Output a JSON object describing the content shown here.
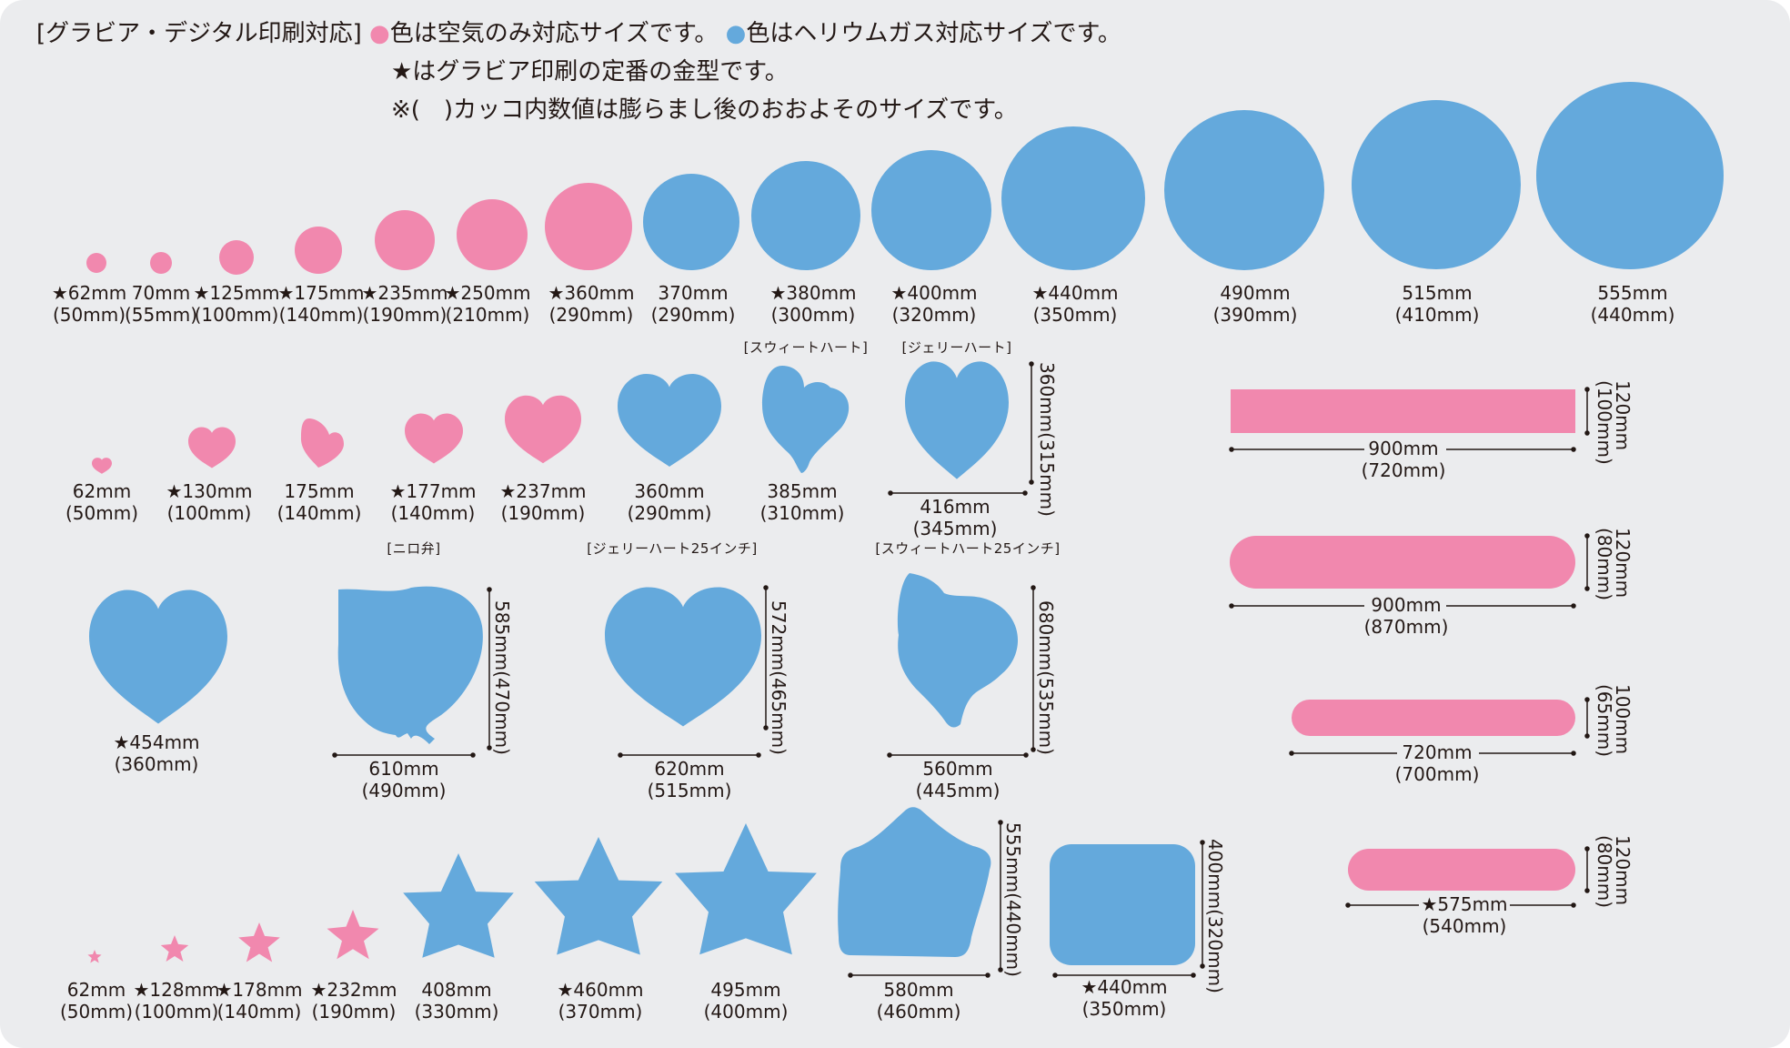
{
  "colors": {
    "pink": "#f188ae",
    "blue": "#64a9dc",
    "background": "#ebecee",
    "text": "#231815"
  },
  "legend": {
    "line1_prefix": "[グラビア・デジタル印刷対応]",
    "pink_dot": "●",
    "pink_text": "色は空気のみ対応サイズです。",
    "blue_dot": "●",
    "blue_text": "色はヘリウムガス対応サイズです。",
    "line2": "★はグラビア印刷の定番の金型です。",
    "line3": "※(　)カッコ内数値は膨らまし後のおおよそのサイズです。"
  },
  "rounds": [
    {
      "size": "★62mm",
      "inflated": "(50mm)",
      "color": "pink"
    },
    {
      "size": "70mm",
      "inflated": "(55mm)",
      "color": "pink"
    },
    {
      "size": "★125mm",
      "inflated": "(100mm)",
      "color": "pink"
    },
    {
      "size": "★175mm",
      "inflated": "(140mm)",
      "color": "pink"
    },
    {
      "size": "★235mm",
      "inflated": "(190mm)",
      "color": "pink"
    },
    {
      "size": "★250mm",
      "inflated": "(210mm)",
      "color": "pink"
    },
    {
      "size": "★360mm",
      "inflated": "(290mm)",
      "color": "pink"
    },
    {
      "size": "370mm",
      "inflated": "(290mm)",
      "color": "blue"
    },
    {
      "size": "★380mm",
      "inflated": "(300mm)",
      "color": "blue"
    },
    {
      "size": "★400mm",
      "inflated": "(320mm)",
      "color": "blue"
    },
    {
      "size": "★440mm",
      "inflated": "(350mm)",
      "color": "blue"
    },
    {
      "size": "490mm",
      "inflated": "(390mm)",
      "color": "blue"
    },
    {
      "size": "515mm",
      "inflated": "(410mm)",
      "color": "blue"
    },
    {
      "size": "555mm",
      "inflated": "(440mm)",
      "color": "blue"
    }
  ],
  "hearts": [
    {
      "size": "62mm",
      "inflated": "(50mm)",
      "color": "pink"
    },
    {
      "size": "★130mm",
      "inflated": "(100mm)",
      "color": "pink"
    },
    {
      "size": "175mm",
      "inflated": "(140mm)",
      "color": "pink"
    },
    {
      "size": "★177mm",
      "inflated": "(140mm)",
      "color": "pink"
    },
    {
      "size": "★237mm",
      "inflated": "(190mm)",
      "color": "pink"
    },
    {
      "size": "360mm",
      "inflated": "(290mm)",
      "color": "blue"
    },
    {
      "caption": "[スウィートハート]",
      "size": "385mm",
      "inflated": "(310mm)",
      "color": "blue"
    },
    {
      "caption": "[ジェリーハート]",
      "size": "416mm",
      "inflated": "(345mm)",
      "height": "360mm(315mm)",
      "color": "blue"
    }
  ],
  "big_shapes": [
    {
      "size": "★454mm",
      "inflated": "(360mm)",
      "color": "blue"
    },
    {
      "caption": "[ニロ弁]",
      "size": "610mm",
      "inflated": "(490mm)",
      "height": "585mm(470mm)",
      "color": "blue"
    },
    {
      "caption": "[ジェリーハート25インチ]",
      "size": "620mm",
      "inflated": "(515mm)",
      "height": "572mm(465mm)",
      "color": "blue"
    },
    {
      "caption": "[スウィートハート25インチ]",
      "size": "560mm",
      "inflated": "(445mm)",
      "height": "680mm(535mm)",
      "color": "blue"
    }
  ],
  "stars": [
    {
      "size": "62mm",
      "inflated": "(50mm)",
      "color": "pink"
    },
    {
      "size": "★128mm",
      "inflated": "(100mm)",
      "color": "pink"
    },
    {
      "size": "★178mm",
      "inflated": "(140mm)",
      "color": "pink"
    },
    {
      "size": "★232mm",
      "inflated": "(190mm)",
      "color": "pink"
    },
    {
      "size": "408mm",
      "inflated": "(330mm)",
      "color": "blue"
    },
    {
      "size": "★460mm",
      "inflated": "(370mm)",
      "color": "blue"
    },
    {
      "size": "495mm",
      "inflated": "(400mm)",
      "color": "blue"
    },
    {
      "size": "580mm",
      "inflated": "(460mm)",
      "height": "555mm(440mm)",
      "color": "blue"
    },
    {
      "size": "★440mm",
      "inflated": "(350mm)",
      "height": "400mm(320mm)",
      "color": "blue"
    }
  ],
  "sticks": [
    {
      "size": "900mm",
      "inflated": "(720mm)",
      "height": "120mm",
      "height_inflated": "(100mm)",
      "color": "pink"
    },
    {
      "size": "900mm",
      "inflated": "(870mm)",
      "height": "120mm",
      "height_inflated": "(80mm)",
      "color": "pink"
    },
    {
      "size": "720mm",
      "inflated": "(700mm)",
      "height": "100mm",
      "height_inflated": "(65mm)",
      "color": "pink"
    },
    {
      "size": "★575mm",
      "inflated": "(540mm)",
      "height": "120mm",
      "height_inflated": "(80mm)",
      "color": "pink"
    }
  ]
}
